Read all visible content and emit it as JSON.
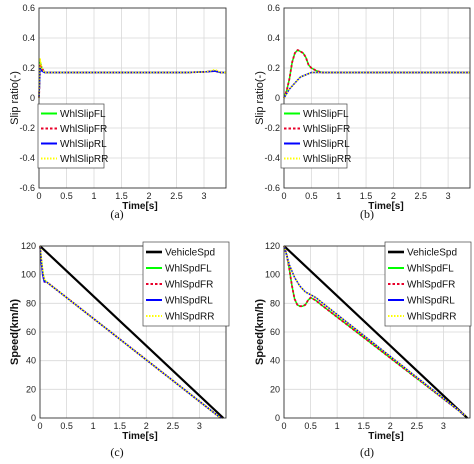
{
  "colors": {
    "FL": "#00ff00",
    "FR": "#e8002a",
    "RL": "#0000ff",
    "RR": "#ffff00",
    "Vehicle": "#000000"
  },
  "chart_data": [
    {
      "id": "a",
      "type": "line",
      "caption": "(a)",
      "xlabel": "Time[s]",
      "ylabel": "Slip ratio(-)",
      "xlim": [
        0,
        3.4
      ],
      "ylim": [
        -0.6,
        0.6
      ],
      "xticks": [
        "0",
        "0.5",
        "1",
        "1.5",
        "2",
        "2.5",
        "3"
      ],
      "yticks": [
        "0.6",
        "0.4",
        "0.2",
        "0",
        "-0.2",
        "-0.4",
        "-0.6"
      ],
      "grid": true,
      "legend": "bottom-left",
      "series": [
        {
          "name": "WhlSlipFL",
          "key": "FL",
          "x": [
            0,
            0.02,
            0.05,
            0.1,
            0.3,
            1,
            2,
            2.7,
            3.05,
            3.2,
            3.3,
            3.4
          ],
          "y": [
            0,
            0.24,
            0.2,
            0.17,
            0.17,
            0.17,
            0.17,
            0.17,
            0.175,
            0.18,
            0.17,
            0.17
          ]
        },
        {
          "name": "WhlSlipFR",
          "key": "FR",
          "x": [
            0,
            0.02,
            0.05,
            0.1,
            0.3,
            1,
            2,
            2.7,
            3.05,
            3.2,
            3.3,
            3.4
          ],
          "y": [
            0,
            0.23,
            0.2,
            0.17,
            0.17,
            0.17,
            0.17,
            0.17,
            0.175,
            0.18,
            0.17,
            0.17
          ]
        },
        {
          "name": "WhlSlipRL",
          "key": "RL",
          "x": [
            0,
            0.02,
            0.05,
            0.1,
            0.3,
            1,
            2,
            2.7,
            3.05,
            3.2,
            3.3,
            3.4
          ],
          "y": [
            0,
            0.2,
            0.18,
            0.17,
            0.17,
            0.17,
            0.17,
            0.17,
            0.175,
            0.18,
            0.17,
            0.17
          ]
        },
        {
          "name": "WhlSlipRR",
          "key": "RR",
          "x": [
            0,
            0.02,
            0.05,
            0.1,
            0.3,
            1,
            2,
            2.7,
            3.05,
            3.2,
            3.3,
            3.4
          ],
          "y": [
            0,
            0.26,
            0.2,
            0.17,
            0.17,
            0.17,
            0.17,
            0.17,
            0.175,
            0.19,
            0.17,
            0.17
          ]
        }
      ]
    },
    {
      "id": "b",
      "type": "line",
      "caption": "(b)",
      "xlabel": "Time[s]",
      "ylabel": "Slip ratio(-)",
      "xlim": [
        0,
        3.4
      ],
      "ylim": [
        -0.6,
        0.6
      ],
      "xticks": [
        "0",
        "0.5",
        "1",
        "1.5",
        "2",
        "2.5",
        "3"
      ],
      "yticks": [
        "0.6",
        "0.4",
        "0.2",
        "0",
        "-0.2",
        "-0.4",
        "-0.6"
      ],
      "grid": true,
      "legend": "bottom-left",
      "series": [
        {
          "name": "WhlSlipFL",
          "key": "FL",
          "x": [
            0,
            0.05,
            0.1,
            0.15,
            0.2,
            0.25,
            0.3,
            0.35,
            0.4,
            0.45,
            0.5,
            0.55,
            0.6,
            0.7,
            0.8,
            1,
            1.5,
            2,
            2.5,
            3,
            3.4
          ],
          "y": [
            0,
            0.05,
            0.13,
            0.24,
            0.3,
            0.32,
            0.31,
            0.3,
            0.27,
            0.22,
            0.2,
            0.19,
            0.18,
            0.17,
            0.17,
            0.17,
            0.17,
            0.17,
            0.17,
            0.17,
            0.17
          ]
        },
        {
          "name": "WhlSlipFR",
          "key": "FR",
          "x": [
            0,
            0.05,
            0.1,
            0.15,
            0.2,
            0.25,
            0.3,
            0.35,
            0.4,
            0.45,
            0.5,
            0.55,
            0.6,
            0.7,
            0.8,
            1,
            1.5,
            2,
            2.5,
            3,
            3.4
          ],
          "y": [
            0,
            0.05,
            0.13,
            0.24,
            0.3,
            0.32,
            0.31,
            0.3,
            0.27,
            0.22,
            0.2,
            0.19,
            0.18,
            0.17,
            0.17,
            0.17,
            0.17,
            0.17,
            0.17,
            0.17,
            0.17
          ]
        },
        {
          "name": "WhlSlipRL",
          "key": "RL",
          "x": [
            0,
            0.05,
            0.1,
            0.2,
            0.3,
            0.5,
            1,
            2,
            3,
            3.4
          ],
          "y": [
            0,
            0.03,
            0.06,
            0.1,
            0.14,
            0.17,
            0.17,
            0.17,
            0.17,
            0.17
          ]
        },
        {
          "name": "WhlSlipRR",
          "key": "RR",
          "x": [
            0,
            0.05,
            0.1,
            0.2,
            0.3,
            0.5,
            1,
            2,
            3,
            3.4
          ],
          "y": [
            0,
            0.03,
            0.06,
            0.1,
            0.14,
            0.17,
            0.17,
            0.17,
            0.17,
            0.17
          ]
        }
      ]
    },
    {
      "id": "c",
      "type": "line",
      "caption": "(c)",
      "xlabel": "Time[s]",
      "ylabel": "Speed(km/h)",
      "xlim": [
        0,
        3.5
      ],
      "ylim": [
        0,
        120
      ],
      "xticks": [
        "0",
        "0.5",
        "1",
        "1.5",
        "2",
        "2.5",
        "3"
      ],
      "yticks": [
        "120",
        "100",
        "80",
        "60",
        "40",
        "20",
        "0"
      ],
      "grid": true,
      "legend": "top-right",
      "series": [
        {
          "name": "VehicleSpd",
          "key": "Vehicle",
          "x": [
            0,
            3.45
          ],
          "y": [
            120,
            0
          ]
        },
        {
          "name": "WhlSpdFL",
          "key": "FL",
          "x": [
            0,
            0.02,
            0.05,
            0.08,
            0.12,
            3.4
          ],
          "y": [
            120,
            112,
            102,
            96,
            95,
            0
          ]
        },
        {
          "name": "WhlSpdFR",
          "key": "FR",
          "x": [
            0,
            0.02,
            0.05,
            0.08,
            0.12,
            3.4
          ],
          "y": [
            120,
            111,
            101,
            95,
            95,
            0
          ]
        },
        {
          "name": "WhlSpdRL",
          "key": "RL",
          "x": [
            0,
            0.02,
            0.05,
            0.08,
            0.12,
            3.4
          ],
          "y": [
            120,
            110,
            100,
            95,
            95,
            0
          ]
        },
        {
          "name": "WhlSpdRR",
          "key": "RR",
          "x": [
            0,
            0.02,
            0.05,
            0.08,
            0.12,
            3.4
          ],
          "y": [
            120,
            113,
            103,
            97,
            95,
            0
          ]
        }
      ]
    },
    {
      "id": "d",
      "type": "line",
      "caption": "(d)",
      "xlabel": "Time[s]",
      "ylabel": "Speed(km/h)",
      "xlim": [
        0,
        3.5
      ],
      "ylim": [
        0,
        120
      ],
      "xticks": [
        "0",
        "0.5",
        "1",
        "1.5",
        "2",
        "2.5",
        "3"
      ],
      "yticks": [
        "120",
        "100",
        "80",
        "60",
        "40",
        "20",
        "0"
      ],
      "grid": true,
      "legend": "top-right",
      "series": [
        {
          "name": "VehicleSpd",
          "key": "Vehicle",
          "x": [
            0,
            3.45
          ],
          "y": [
            120,
            0
          ]
        },
        {
          "name": "WhlSpdFL",
          "key": "FL",
          "x": [
            0,
            0.05,
            0.1,
            0.15,
            0.2,
            0.25,
            0.3,
            0.35,
            0.4,
            0.45,
            0.5,
            0.55,
            0.6,
            0.7,
            3.4
          ],
          "y": [
            120,
            114,
            104,
            92,
            83,
            79,
            78,
            78,
            79,
            82,
            84,
            83,
            82,
            79,
            2
          ]
        },
        {
          "name": "WhlSpdFR",
          "key": "FR",
          "x": [
            0,
            0.05,
            0.1,
            0.15,
            0.2,
            0.25,
            0.3,
            0.35,
            0.4,
            0.45,
            0.5,
            0.55,
            0.6,
            0.7,
            3.4
          ],
          "y": [
            120,
            114,
            104,
            92,
            83,
            79,
            78,
            78,
            79,
            82,
            84,
            83,
            82,
            79,
            2
          ]
        },
        {
          "name": "WhlSpdRL",
          "key": "RL",
          "x": [
            0,
            0.1,
            0.2,
            0.3,
            0.4,
            0.5,
            0.6,
            0.7,
            3.4
          ],
          "y": [
            120,
            107,
            98,
            92,
            88,
            86,
            84,
            81,
            2
          ]
        },
        {
          "name": "WhlSpdRR",
          "key": "RR",
          "x": [
            0,
            0.1,
            0.2,
            0.3,
            0.4,
            0.5,
            0.6,
            0.7,
            3.4
          ],
          "y": [
            120,
            107,
            98,
            92,
            88,
            86,
            84,
            81,
            2
          ]
        }
      ]
    }
  ]
}
